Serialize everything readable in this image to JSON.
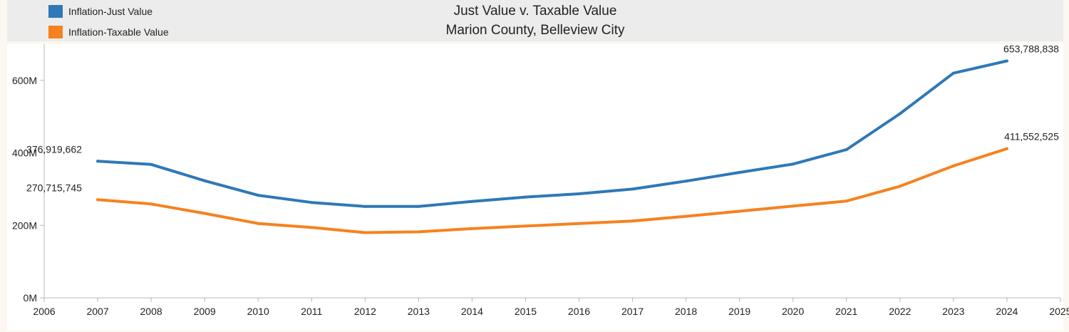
{
  "chart_data": {
    "type": "line",
    "title": "Just Value v. Taxable Value",
    "subtitle": "Marion County, Belleview City",
    "xlabel": "",
    "ylabel": "",
    "x_ticks": [
      "2006",
      "2007",
      "2008",
      "2009",
      "2010",
      "2011",
      "2012",
      "2013",
      "2014",
      "2015",
      "2016",
      "2017",
      "2018",
      "2019",
      "2020",
      "2021",
      "2022",
      "2023",
      "2024",
      "2025"
    ],
    "y_ticks": [
      "0M",
      "200M",
      "400M",
      "600M"
    ],
    "xlim": [
      2006,
      2025
    ],
    "ylim": [
      0,
      700000000
    ],
    "series": [
      {
        "name": "Inflation-Just Value",
        "color": "#2e78b8",
        "x": [
          2007,
          2008,
          2009,
          2010,
          2011,
          2012,
          2013,
          2014,
          2015,
          2016,
          2017,
          2018,
          2019,
          2020,
          2021,
          2022,
          2023,
          2024
        ],
        "values": [
          376919662,
          368000000,
          323000000,
          283000000,
          263000000,
          252000000,
          252000000,
          266000000,
          278000000,
          287000000,
          300000000,
          322000000,
          346000000,
          369000000,
          409000000,
          508000000,
          620000000,
          653788838
        ]
      },
      {
        "name": "Inflation-Taxable Value",
        "color": "#f5821f",
        "x": [
          2007,
          2008,
          2009,
          2010,
          2011,
          2012,
          2013,
          2014,
          2015,
          2016,
          2017,
          2018,
          2019,
          2020,
          2021,
          2022,
          2023,
          2024
        ],
        "values": [
          270715745,
          259000000,
          233000000,
          205000000,
          194000000,
          180000000,
          182000000,
          191000000,
          198000000,
          205000000,
          212000000,
          225000000,
          239000000,
          253000000,
          267000000,
          308000000,
          364000000,
          411552525
        ]
      }
    ],
    "annotations": [
      {
        "series": 0,
        "year": 2007,
        "text": "376,919,662"
      },
      {
        "series": 0,
        "year": 2024,
        "text": "653,788,838"
      },
      {
        "series": 1,
        "year": 2007,
        "text": "270,715,745"
      },
      {
        "series": 1,
        "year": 2024,
        "text": "411,552,525"
      }
    ],
    "grid": false,
    "legend_position": "top-left"
  }
}
